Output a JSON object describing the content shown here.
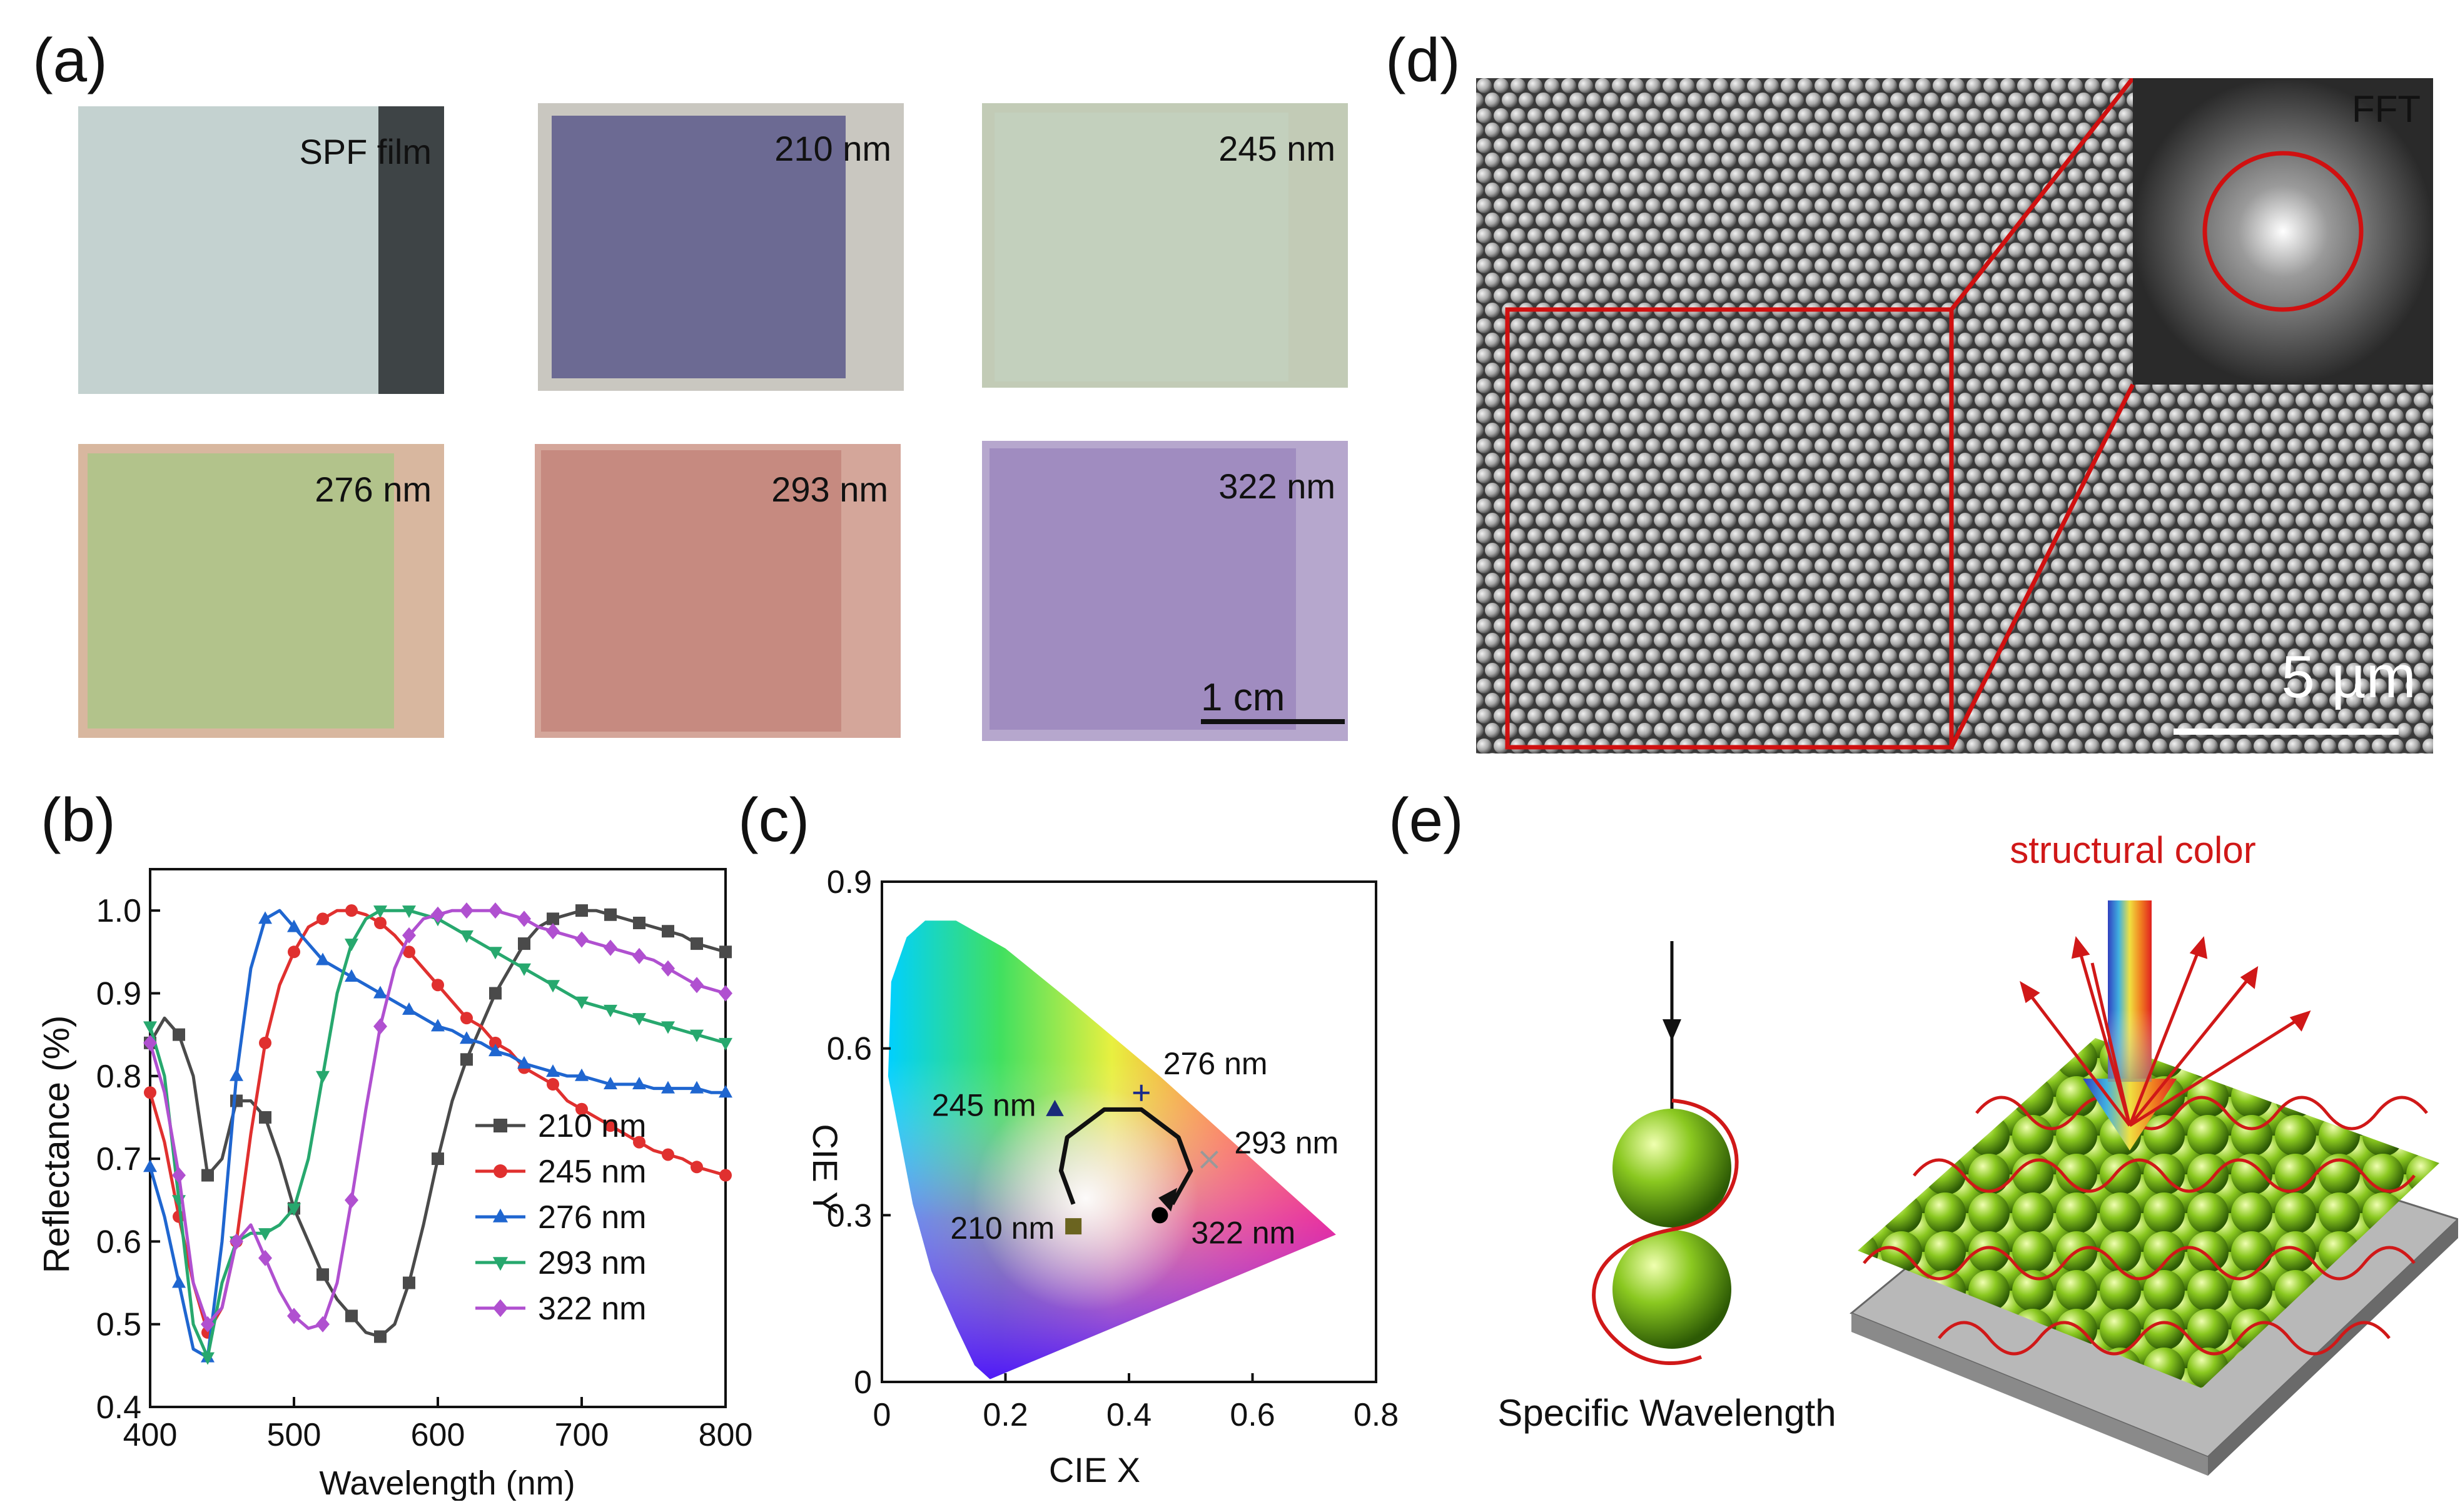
{
  "panels": {
    "a": "(a)",
    "b": "(b)",
    "c": "(c)",
    "d": "(d)",
    "e": "(e)"
  },
  "photos": [
    {
      "label": "SPF film",
      "color": "#c4d2d0"
    },
    {
      "label": "210 nm",
      "color": "#6c6a93"
    },
    {
      "label": "245 nm",
      "color": "#c3d0bd"
    },
    {
      "label": "276 nm",
      "color": "#b2c38b"
    },
    {
      "label": "293 nm",
      "color": "#c68a80"
    },
    {
      "label": "322 nm",
      "color": "#a08cc0"
    }
  ],
  "photo_scale": "1 cm",
  "sem": {
    "fft_label": "FFT",
    "scale_label": "5 µm"
  },
  "chart_data": [
    {
      "type": "line",
      "xlabel": "Wavelength (nm)",
      "ylabel": "Reflectance (%)",
      "xlim": [
        400,
        800
      ],
      "ylim": [
        0.4,
        1.05
      ],
      "xticks": [
        400,
        500,
        600,
        700,
        800
      ],
      "yticks": [
        0.4,
        0.5,
        0.6,
        0.7,
        0.8,
        0.9,
        1.0
      ],
      "series": [
        {
          "name": "210 nm",
          "color": "#4a4a4a",
          "marker": "square",
          "x": [
            400,
            410,
            420,
            430,
            440,
            450,
            460,
            470,
            480,
            490,
            500,
            510,
            520,
            530,
            540,
            550,
            560,
            570,
            580,
            590,
            600,
            610,
            620,
            630,
            640,
            650,
            660,
            670,
            680,
            690,
            700,
            710,
            720,
            730,
            740,
            750,
            760,
            770,
            780,
            790,
            800
          ],
          "y": [
            0.84,
            0.87,
            0.85,
            0.8,
            0.68,
            0.7,
            0.77,
            0.77,
            0.75,
            0.7,
            0.64,
            0.6,
            0.56,
            0.53,
            0.51,
            0.49,
            0.485,
            0.5,
            0.55,
            0.62,
            0.7,
            0.77,
            0.82,
            0.86,
            0.9,
            0.93,
            0.96,
            0.98,
            0.99,
            0.995,
            1.0,
            1.0,
            0.995,
            0.99,
            0.985,
            0.98,
            0.975,
            0.97,
            0.96,
            0.955,
            0.95
          ]
        },
        {
          "name": "245 nm",
          "color": "#e0302f",
          "marker": "circle",
          "x": [
            400,
            410,
            420,
            430,
            440,
            450,
            460,
            470,
            480,
            490,
            500,
            510,
            520,
            530,
            540,
            550,
            560,
            570,
            580,
            590,
            600,
            610,
            620,
            630,
            640,
            650,
            660,
            670,
            680,
            690,
            700,
            710,
            720,
            730,
            740,
            750,
            760,
            770,
            780,
            790,
            800
          ],
          "y": [
            0.78,
            0.72,
            0.63,
            0.55,
            0.49,
            0.52,
            0.6,
            0.73,
            0.84,
            0.91,
            0.95,
            0.98,
            0.99,
            1.0,
            1.0,
            0.995,
            0.985,
            0.97,
            0.95,
            0.93,
            0.91,
            0.89,
            0.87,
            0.86,
            0.84,
            0.83,
            0.81,
            0.8,
            0.79,
            0.77,
            0.76,
            0.75,
            0.74,
            0.73,
            0.72,
            0.71,
            0.705,
            0.7,
            0.69,
            0.685,
            0.68
          ]
        },
        {
          "name": "276 nm",
          "color": "#1f66d0",
          "marker": "triangle-up",
          "x": [
            400,
            410,
            420,
            430,
            440,
            450,
            460,
            470,
            480,
            490,
            500,
            510,
            520,
            530,
            540,
            550,
            560,
            570,
            580,
            590,
            600,
            610,
            620,
            630,
            640,
            650,
            660,
            670,
            680,
            690,
            700,
            710,
            720,
            730,
            740,
            750,
            760,
            770,
            780,
            790,
            800
          ],
          "y": [
            0.69,
            0.63,
            0.55,
            0.47,
            0.46,
            0.6,
            0.8,
            0.93,
            0.99,
            1.0,
            0.98,
            0.96,
            0.94,
            0.93,
            0.92,
            0.91,
            0.9,
            0.89,
            0.88,
            0.87,
            0.86,
            0.855,
            0.845,
            0.84,
            0.83,
            0.825,
            0.815,
            0.81,
            0.805,
            0.8,
            0.8,
            0.795,
            0.79,
            0.79,
            0.79,
            0.785,
            0.785,
            0.785,
            0.785,
            0.78,
            0.78
          ]
        },
        {
          "name": "293 nm",
          "color": "#27a86e",
          "marker": "triangle-down",
          "x": [
            400,
            410,
            420,
            430,
            440,
            450,
            460,
            470,
            480,
            490,
            500,
            510,
            520,
            530,
            540,
            550,
            560,
            570,
            580,
            590,
            600,
            610,
            620,
            630,
            640,
            650,
            660,
            670,
            680,
            690,
            700,
            710,
            720,
            730,
            740,
            750,
            760,
            770,
            780,
            790,
            800
          ],
          "y": [
            0.86,
            0.8,
            0.65,
            0.5,
            0.46,
            0.55,
            0.6,
            0.61,
            0.61,
            0.62,
            0.64,
            0.7,
            0.8,
            0.9,
            0.96,
            0.99,
            1.0,
            1.0,
            1.0,
            0.995,
            0.99,
            0.98,
            0.97,
            0.96,
            0.95,
            0.94,
            0.93,
            0.92,
            0.91,
            0.9,
            0.89,
            0.885,
            0.88,
            0.875,
            0.87,
            0.865,
            0.86,
            0.855,
            0.85,
            0.845,
            0.84
          ]
        },
        {
          "name": "322 nm",
          "color": "#b050d0",
          "marker": "diamond",
          "x": [
            400,
            410,
            420,
            430,
            440,
            450,
            460,
            470,
            480,
            490,
            500,
            510,
            520,
            530,
            540,
            550,
            560,
            570,
            580,
            590,
            600,
            610,
            620,
            630,
            640,
            650,
            660,
            670,
            680,
            690,
            700,
            710,
            720,
            730,
            740,
            750,
            760,
            770,
            780,
            790,
            800
          ],
          "y": [
            0.84,
            0.78,
            0.68,
            0.55,
            0.5,
            0.52,
            0.6,
            0.62,
            0.58,
            0.54,
            0.51,
            0.495,
            0.5,
            0.55,
            0.65,
            0.76,
            0.86,
            0.93,
            0.97,
            0.99,
            0.995,
            1.0,
            1.0,
            1.0,
            1.0,
            0.995,
            0.99,
            0.98,
            0.975,
            0.97,
            0.965,
            0.96,
            0.955,
            0.95,
            0.945,
            0.94,
            0.93,
            0.92,
            0.91,
            0.905,
            0.9
          ]
        }
      ]
    },
    {
      "type": "scatter",
      "xlabel": "CIE X",
      "ylabel": "CIE Y",
      "xlim": [
        0,
        0.8
      ],
      "ylim": [
        0,
        0.9
      ],
      "xticks": [
        "0",
        "0.2",
        "0.4",
        "0.6",
        "0.8"
      ],
      "xtick_values": [
        0,
        0.2,
        0.4,
        0.6,
        0.8
      ],
      "yticks": [
        "0",
        "0.3",
        "0.6",
        "0.9"
      ],
      "ytick_values": [
        0,
        0.3,
        0.6,
        0.9
      ],
      "gamut": [
        [
          0.175,
          0.005
        ],
        [
          0.15,
          0.03
        ],
        [
          0.12,
          0.1
        ],
        [
          0.08,
          0.2
        ],
        [
          0.05,
          0.32
        ],
        [
          0.01,
          0.55
        ],
        [
          0.015,
          0.72
        ],
        [
          0.04,
          0.8
        ],
        [
          0.07,
          0.83
        ],
        [
          0.12,
          0.83
        ],
        [
          0.2,
          0.78
        ],
        [
          0.3,
          0.69
        ],
        [
          0.45,
          0.55
        ],
        [
          0.55,
          0.45
        ],
        [
          0.65,
          0.35
        ],
        [
          0.735,
          0.265
        ],
        [
          0.175,
          0.005
        ]
      ],
      "points": [
        {
          "label": "210 nm",
          "x": 0.31,
          "y": 0.28,
          "marker": "square",
          "color": "#6b6420"
        },
        {
          "label": "245 nm",
          "x": 0.28,
          "y": 0.49,
          "marker": "triangle-up",
          "color": "#1a2a7a"
        },
        {
          "label": "276 nm",
          "x": 0.42,
          "y": 0.52,
          "marker": "plus",
          "color": "#1a2a8a"
        },
        {
          "label": "293 nm",
          "x": 0.53,
          "y": 0.4,
          "marker": "cross",
          "color": "#999999"
        },
        {
          "label": "322 nm",
          "x": 0.45,
          "y": 0.3,
          "marker": "circle",
          "color": "#000000"
        }
      ],
      "trajectory": [
        [
          0.31,
          0.32
        ],
        [
          0.29,
          0.38
        ],
        [
          0.3,
          0.44
        ],
        [
          0.36,
          0.49
        ],
        [
          0.42,
          0.49
        ],
        [
          0.48,
          0.44
        ],
        [
          0.5,
          0.38
        ],
        [
          0.47,
          0.32
        ]
      ]
    }
  ],
  "schematic": {
    "title": "structural color",
    "left_caption": "Specific Wavelength"
  }
}
